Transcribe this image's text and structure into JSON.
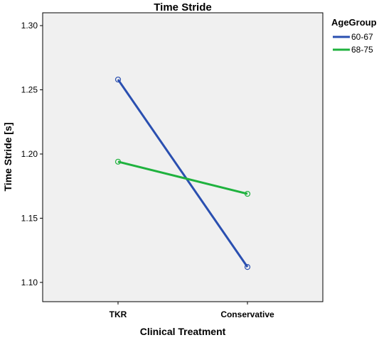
{
  "chart_data": {
    "type": "line",
    "title": "Time Stride",
    "xlabel": "Clinical Treatment",
    "ylabel": "Time Stride [s]",
    "categories": [
      "TKR",
      "Conservative"
    ],
    "ylim": [
      1.085,
      1.31
    ],
    "yticks": [
      "1.10",
      "1.15",
      "1.20",
      "1.25",
      "1.30"
    ],
    "grid": false,
    "legend": {
      "title": "AgeGroup",
      "placement": "right"
    },
    "series": [
      {
        "name": "60-67",
        "values": [
          1.258,
          1.112
        ],
        "color": "#2a4fb0"
      },
      {
        "name": "68-75",
        "values": [
          1.194,
          1.169
        ],
        "color": "#1fb23e"
      }
    ],
    "plot_background": "#f0f0f0"
  }
}
